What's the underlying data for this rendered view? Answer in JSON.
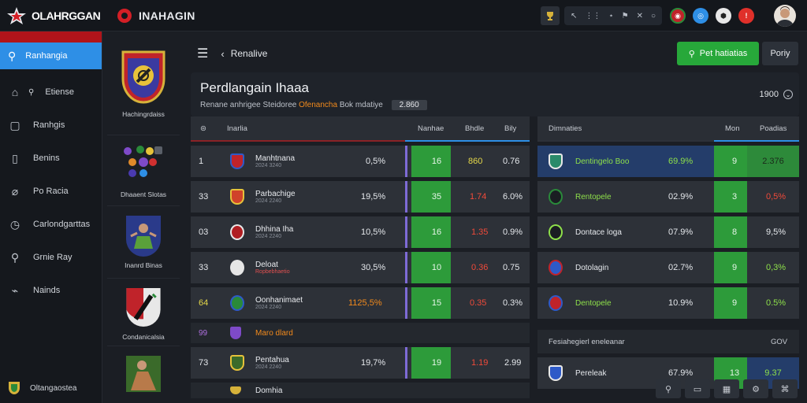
{
  "app": {
    "logo_text": "OLAHRGGAN",
    "title": "INAHAGIN"
  },
  "topbar": {
    "tool_items": [
      "↖",
      "⋆",
      "⚑",
      "✕",
      "○"
    ],
    "circle_icons": [
      {
        "name": "flag-red-icon",
        "color": "#c0232a"
      },
      {
        "name": "globe-blue-icon",
        "color": "#2e8fe6"
      },
      {
        "name": "soccer-ball-icon",
        "color": "#e8e8e8"
      },
      {
        "name": "alert-red-icon",
        "color": "#e0302a"
      }
    ]
  },
  "sidebar": {
    "active": "Ranhangia",
    "items": [
      {
        "label": "Etiense",
        "icon": "home-icon"
      },
      {
        "label": "Ranhgis",
        "icon": "file-icon"
      },
      {
        "label": "Benins",
        "icon": "bookmark-icon"
      },
      {
        "label": "Po Racia",
        "icon": "tag-icon"
      },
      {
        "label": "Carlondgarttas",
        "icon": "clock-icon"
      },
      {
        "label": "Grnie Ray",
        "icon": "search-icon"
      },
      {
        "label": "Nainds",
        "icon": "link-icon"
      }
    ],
    "bottom": "Oltangaostea"
  },
  "teams": [
    {
      "name": "Hachingrdaiss"
    },
    {
      "name": "Dhaaent Slotas"
    },
    {
      "name": "Inanrd Binas"
    },
    {
      "name": "Condanicalsia"
    }
  ],
  "toolbar": {
    "title": "Renalive",
    "primary_button": "Pet hatiatias",
    "secondary_button": "Poriy"
  },
  "header": {
    "title": "Perdlangain Ihaaa",
    "subtitle_pre": "Renane anhrigee Steidoree",
    "subtitle_hl": "Ofenancha",
    "subtitle_post": "Bok mdatiye",
    "badge": "2.860",
    "right": "1900"
  },
  "left_table": {
    "columns": [
      "Inarlia",
      "Nanhae",
      "Bhdle",
      "Bily"
    ],
    "rows": [
      {
        "rank": "1",
        "name": "Manhtnana",
        "sub": "2024 3240",
        "pct": "0,5%",
        "score": "16",
        "v1": "860",
        "v2": "0.76",
        "rank_color": "",
        "v1_color": "yellow",
        "crest": "#c0232a"
      },
      {
        "rank": "33",
        "name": "Parbachige",
        "sub": "2024 2240",
        "pct": "19,5%",
        "score": "35",
        "v1": "1.74",
        "v2": "6.0%",
        "rank_color": "",
        "v1_color": "red",
        "crest": "#d0422a"
      },
      {
        "rank": "03",
        "name": "Dhhina Iha",
        "sub": "2024 2240",
        "pct": "10,5%",
        "score": "16",
        "v1": "1.35",
        "v2": "0.9%",
        "rank_color": "",
        "v1_color": "red",
        "crest": "#b01e22"
      },
      {
        "rank": "33",
        "name": "Deloat",
        "sub": "Roronioho 2000",
        "pct": "30,5%",
        "score": "10",
        "v1": "0.36",
        "v2": "0.75",
        "rank_color": "",
        "v1_color": "red",
        "crest": "#e6e6e6",
        "name2": "Ropbebhaetio"
      },
      {
        "rank": "64",
        "name": "Oonhanimaet",
        "sub": "2024 2240",
        "pct": "1125,5%",
        "score": "15",
        "v1": "0.35",
        "v2": "0.3%",
        "rank_color": "yellow",
        "v1_color": "red",
        "pct_color": "orange",
        "crest": "#2a8a3a"
      },
      {
        "rank": "73",
        "name": "Pentahua",
        "sub": "2024 2240",
        "pct": "19,7%",
        "score": "19",
        "v1": "1.19",
        "v2": "2.99",
        "rank_color": "",
        "v1_color": "red",
        "crest": "#3a6a2a"
      }
    ],
    "sep_row": {
      "rank": "99",
      "name": "Maro dlard"
    },
    "last_row_name": "Domhia"
  },
  "right_table": {
    "columns": [
      "Dimnaties",
      "Mon",
      "Poadias"
    ],
    "rows": [
      {
        "name": "Dentingelo Boo",
        "pct": "69.9%",
        "score": "9",
        "v": "2.376",
        "highlight": true,
        "v_color": "lime"
      },
      {
        "name": "Rentopele",
        "pct": "02.9%",
        "score": "3",
        "v": "0,5%",
        "v_color": "red"
      },
      {
        "name": "Dontace loga",
        "pct": "07.9%",
        "score": "8",
        "v": "9,5%",
        "v_color": ""
      },
      {
        "name": "Dotolagin",
        "pct": "02.7%",
        "score": "9",
        "v": "0,3%",
        "v_color": "lime"
      },
      {
        "name": "Dentopele",
        "pct": "10.9%",
        "score": "9",
        "v": "0.5%",
        "v_color": "lime"
      },
      {
        "name": "Pereleak",
        "pct": "67.9%",
        "score": "13",
        "v": "9.37",
        "v_color": "lime"
      }
    ],
    "sep_row": {
      "name": "Fesiahegierl eneleanar",
      "right": "GOV"
    }
  }
}
